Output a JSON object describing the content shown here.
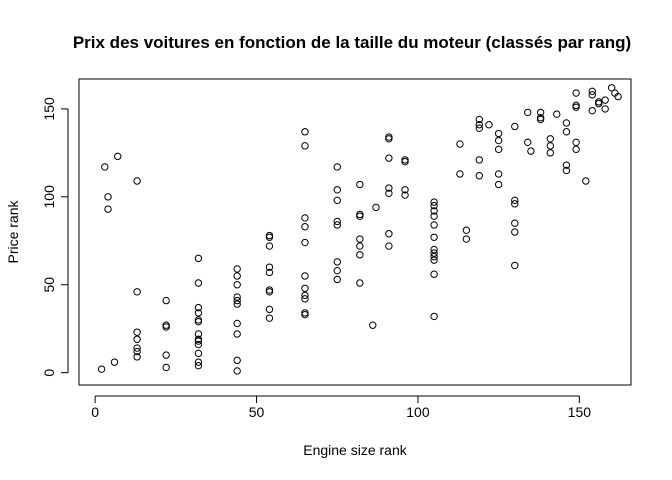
{
  "chart_data": {
    "type": "scatter",
    "title": "Prix des voitures en fonction de la taille du moteur (classés par rang)",
    "xlabel": "Engine size rank",
    "ylabel": "Price rank",
    "xlim": [
      -5,
      166
    ],
    "ylim": [
      -7,
      167
    ],
    "xticks": [
      0,
      50,
      100,
      150
    ],
    "yticks": [
      0,
      50,
      100,
      150
    ],
    "x_tick_labels": [
      "0",
      "50",
      "100",
      "150"
    ],
    "y_tick_labels": [
      "0",
      "50",
      "100",
      "150"
    ],
    "grid": false,
    "legend": "none",
    "point_style": "open-circle",
    "point_color": "#000000",
    "points": [
      [
        2,
        2
      ],
      [
        3,
        117
      ],
      [
        4,
        100
      ],
      [
        4,
        93
      ],
      [
        6,
        6
      ],
      [
        7,
        123
      ],
      [
        13,
        109
      ],
      [
        13,
        46
      ],
      [
        13,
        23
      ],
      [
        13,
        19
      ],
      [
        13,
        14
      ],
      [
        13,
        12
      ],
      [
        13,
        9
      ],
      [
        22,
        41
      ],
      [
        22,
        27
      ],
      [
        22,
        26
      ],
      [
        22,
        10
      ],
      [
        22,
        3
      ],
      [
        32,
        65
      ],
      [
        32,
        51
      ],
      [
        32,
        37
      ],
      [
        32,
        34
      ],
      [
        32,
        30
      ],
      [
        32,
        29
      ],
      [
        32,
        22
      ],
      [
        32,
        19
      ],
      [
        32,
        18
      ],
      [
        32,
        16
      ],
      [
        32,
        11
      ],
      [
        32,
        6
      ],
      [
        32,
        4
      ],
      [
        44,
        59
      ],
      [
        44,
        55
      ],
      [
        44,
        50
      ],
      [
        44,
        43
      ],
      [
        44,
        41
      ],
      [
        44,
        39
      ],
      [
        44,
        28
      ],
      [
        44,
        22
      ],
      [
        44,
        7
      ],
      [
        44,
        1
      ],
      [
        54,
        78
      ],
      [
        54,
        77
      ],
      [
        54,
        72
      ],
      [
        54,
        60
      ],
      [
        54,
        57
      ],
      [
        54,
        47
      ],
      [
        54,
        46
      ],
      [
        54,
        36
      ],
      [
        54,
        31
      ],
      [
        65,
        137
      ],
      [
        65,
        129
      ],
      [
        65,
        88
      ],
      [
        65,
        83
      ],
      [
        65,
        74
      ],
      [
        65,
        55
      ],
      [
        65,
        48
      ],
      [
        65,
        44
      ],
      [
        65,
        42
      ],
      [
        65,
        34
      ],
      [
        65,
        33
      ],
      [
        75,
        117
      ],
      [
        75,
        104
      ],
      [
        75,
        98
      ],
      [
        75,
        86
      ],
      [
        75,
        84
      ],
      [
        75,
        63
      ],
      [
        75,
        58
      ],
      [
        75,
        53
      ],
      [
        82,
        107
      ],
      [
        82,
        90
      ],
      [
        82,
        89
      ],
      [
        82,
        76
      ],
      [
        82,
        72
      ],
      [
        82,
        67
      ],
      [
        82,
        51
      ],
      [
        86,
        27
      ],
      [
        87,
        94
      ],
      [
        91,
        134
      ],
      [
        91,
        133
      ],
      [
        91,
        122
      ],
      [
        91,
        105
      ],
      [
        91,
        102
      ],
      [
        91,
        79
      ],
      [
        91,
        72
      ],
      [
        96,
        121
      ],
      [
        96,
        120
      ],
      [
        96,
        104
      ],
      [
        96,
        101
      ],
      [
        105,
        97
      ],
      [
        105,
        95
      ],
      [
        105,
        92
      ],
      [
        105,
        89
      ],
      [
        105,
        84
      ],
      [
        105,
        77
      ],
      [
        105,
        70
      ],
      [
        105,
        68
      ],
      [
        105,
        66
      ],
      [
        105,
        64
      ],
      [
        105,
        56
      ],
      [
        105,
        32
      ],
      [
        113,
        130
      ],
      [
        113,
        113
      ],
      [
        115,
        81
      ],
      [
        115,
        76
      ],
      [
        119,
        144
      ],
      [
        119,
        141
      ],
      [
        119,
        139
      ],
      [
        119,
        121
      ],
      [
        119,
        112
      ],
      [
        122,
        141
      ],
      [
        125,
        136
      ],
      [
        125,
        132
      ],
      [
        125,
        127
      ],
      [
        125,
        113
      ],
      [
        125,
        107
      ],
      [
        130,
        140
      ],
      [
        130,
        98
      ],
      [
        130,
        96
      ],
      [
        130,
        85
      ],
      [
        130,
        80
      ],
      [
        130,
        61
      ],
      [
        134,
        148
      ],
      [
        134,
        131
      ],
      [
        135,
        126
      ],
      [
        138,
        148
      ],
      [
        138,
        145
      ],
      [
        138,
        144
      ],
      [
        141,
        133
      ],
      [
        141,
        129
      ],
      [
        141,
        125
      ],
      [
        143,
        147
      ],
      [
        146,
        142
      ],
      [
        146,
        137
      ],
      [
        146,
        118
      ],
      [
        146,
        115
      ],
      [
        149,
        159
      ],
      [
        149,
        152
      ],
      [
        149,
        151
      ],
      [
        149,
        131
      ],
      [
        149,
        127
      ],
      [
        152,
        109
      ],
      [
        154,
        160
      ],
      [
        154,
        158
      ],
      [
        154,
        149
      ],
      [
        156,
        154
      ],
      [
        156,
        153
      ],
      [
        158,
        155
      ],
      [
        158,
        150
      ],
      [
        160,
        162
      ],
      [
        161,
        159
      ],
      [
        162,
        157
      ]
    ]
  }
}
